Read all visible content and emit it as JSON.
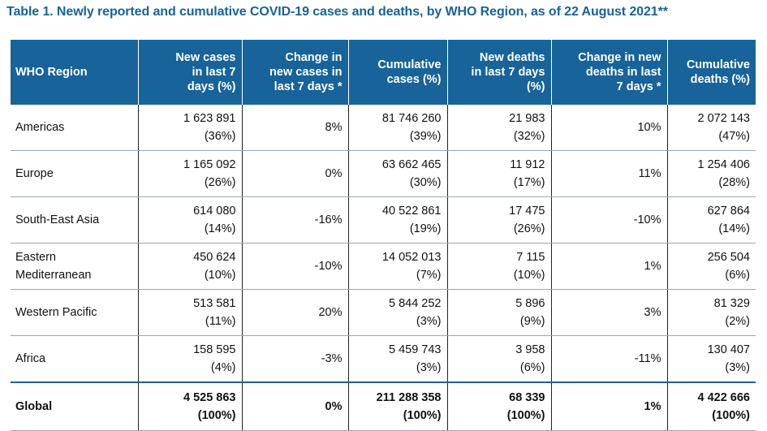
{
  "title": "Table 1. Newly reported and cumulative COVID-19 cases and deaths, by WHO Region, as of 22 August 2021**",
  "headers": {
    "region": "WHO Region",
    "new_cases": [
      "New cases",
      "in  last 7",
      "days (%)"
    ],
    "change_cases": [
      "Change in",
      "new cases in",
      "last 7 days *"
    ],
    "cum_cases": [
      "Cumulative",
      "cases (%)"
    ],
    "new_deaths": [
      "New deaths",
      "in  last 7 days",
      "(%)"
    ],
    "change_deaths": [
      "Change in new",
      "deaths in last",
      "7 days *"
    ],
    "cum_deaths": [
      "Cumulative",
      "deaths (%)"
    ]
  },
  "rows": [
    {
      "region": [
        "Americas"
      ],
      "new_cases": "1 623 891",
      "new_cases_pct": "(36%)",
      "change_cases": "8%",
      "cum_cases": "81 746 260",
      "cum_cases_pct": "(39%)",
      "new_deaths": "21 983",
      "new_deaths_pct": "(32%)",
      "change_deaths": "10%",
      "cum_deaths": "2 072 143",
      "cum_deaths_pct": "(47%)"
    },
    {
      "region": [
        "Europe"
      ],
      "new_cases": "1 165 092",
      "new_cases_pct": "(26%)",
      "change_cases": "0%",
      "cum_cases": "63 662 465",
      "cum_cases_pct": "(30%)",
      "new_deaths": "11 912",
      "new_deaths_pct": "(17%)",
      "change_deaths": "11%",
      "cum_deaths": "1 254 406",
      "cum_deaths_pct": "(28%)"
    },
    {
      "region": [
        "South-East Asia"
      ],
      "new_cases": "614 080",
      "new_cases_pct": "(14%)",
      "change_cases": "-16%",
      "cum_cases": "40 522 861",
      "cum_cases_pct": "(19%)",
      "new_deaths": "17 475",
      "new_deaths_pct": "(26%)",
      "change_deaths": "-10%",
      "cum_deaths": "627 864",
      "cum_deaths_pct": "(14%)"
    },
    {
      "region": [
        "Eastern",
        "Mediterranean"
      ],
      "new_cases": "450 624",
      "new_cases_pct": "(10%)",
      "change_cases": "-10%",
      "cum_cases": "14 052 013",
      "cum_cases_pct": "(7%)",
      "new_deaths": "7 115",
      "new_deaths_pct": "(10%)",
      "change_deaths": "1%",
      "cum_deaths": "256 504",
      "cum_deaths_pct": "(6%)"
    },
    {
      "region": [
        "Western Pacific"
      ],
      "new_cases": "513 581",
      "new_cases_pct": "(11%)",
      "change_cases": "20%",
      "cum_cases": "5 844 252",
      "cum_cases_pct": "(3%)",
      "new_deaths": "5 896",
      "new_deaths_pct": "(9%)",
      "change_deaths": "3%",
      "cum_deaths": "81 329",
      "cum_deaths_pct": "(2%)"
    },
    {
      "region": [
        "Africa"
      ],
      "new_cases": "158 595",
      "new_cases_pct": "(4%)",
      "change_cases": "-3%",
      "cum_cases": "5 459 743",
      "cum_cases_pct": "(3%)",
      "new_deaths": "3 958",
      "new_deaths_pct": "(6%)",
      "change_deaths": "-11%",
      "cum_deaths": "130 407",
      "cum_deaths_pct": "(3%)"
    }
  ],
  "global": {
    "region": "Global",
    "new_cases": "4 525 863",
    "new_cases_pct": "(100%)",
    "change_cases": "0%",
    "cum_cases": "211 288 358",
    "cum_cases_pct": "(100%)",
    "new_deaths": "68 339",
    "new_deaths_pct": "(100%)",
    "change_deaths": "1%",
    "cum_deaths": "4 422 666",
    "cum_deaths_pct": "(100%)"
  },
  "colors": {
    "header_bg": "#17639a",
    "title": "#17639a"
  }
}
